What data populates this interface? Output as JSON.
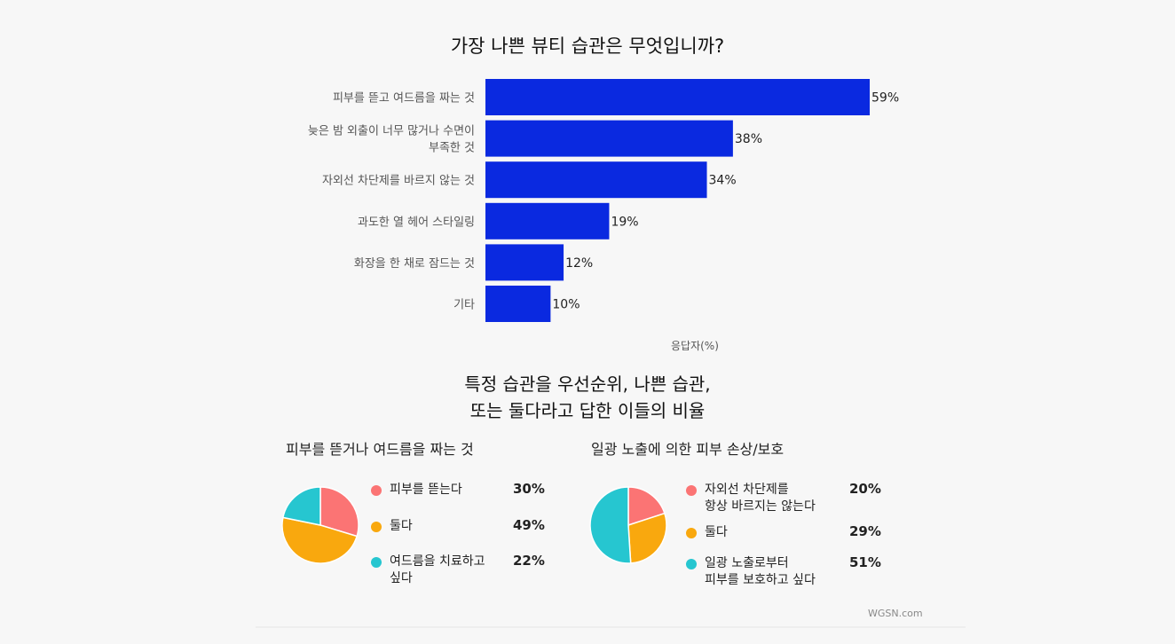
{
  "chart_data": [
    {
      "type": "bar",
      "orientation": "horizontal",
      "title": "가장 나쁜 뷰티 습관은 무엇입니까?",
      "categories": [
        [
          "피부를 뜯고 여드름을 짜는 것"
        ],
        [
          "늦은 밤 외출이 너무 많거나 수면이",
          "부족한 것"
        ],
        [
          "자외선 차단제를 바르지 않는 것"
        ],
        [
          "과도한 열 헤어 스타일링"
        ],
        [
          "화장을 한 채로 잠드는 것"
        ],
        [
          "기타"
        ]
      ],
      "values": [
        59,
        38,
        34,
        19,
        12,
        10
      ],
      "value_labels": [
        "59%",
        "38%",
        "34%",
        "19%",
        "12%",
        "10%"
      ],
      "xlabel": "응답자(%)",
      "color": "#0a29e0"
    },
    {
      "type": "pie",
      "title": "피부를 뜯거나 여드름을 짜는 것",
      "labels": [
        [
          "피부를 뜯는다"
        ],
        [
          "둘다"
        ],
        [
          "여드름을 치료하고",
          "싶다"
        ]
      ],
      "values": [
        30,
        49,
        22
      ],
      "value_labels": [
        "30%",
        "49%",
        "22%"
      ],
      "colors": [
        "#fb7474",
        "#f9a80e",
        "#26c6d0"
      ]
    },
    {
      "type": "pie",
      "title": "일광 노출에 의한 피부 손상/보호",
      "labels": [
        [
          "자외선 차단제를",
          "항상 바르지는 않는다"
        ],
        [
          "둘다"
        ],
        [
          "일광 노출로부터",
          "피부를 보호하고 싶다"
        ]
      ],
      "values": [
        20,
        29,
        51
      ],
      "value_labels": [
        "20%",
        "29%",
        "51%"
      ],
      "colors": [
        "#fb7474",
        "#f9a80e",
        "#26c6d0"
      ]
    }
  ],
  "section2": {
    "title_line1": "특정 습관을 우선순위, 나쁜 습관,",
    "title_line2": "또는 둘다라고 답한 이들의 비율"
  },
  "source": "WGSN.com"
}
